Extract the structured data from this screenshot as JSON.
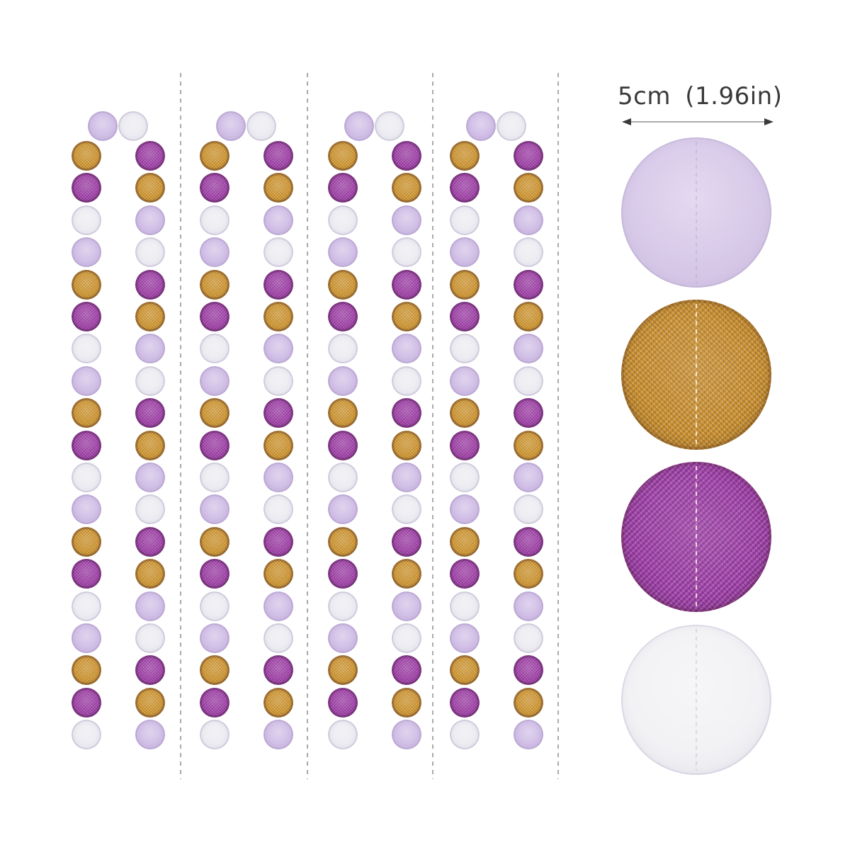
{
  "size_annotation": {
    "label": "5cm (1.96in)",
    "text_color": "#3a3a3a",
    "line_color": "#ababab",
    "arrowhead_color": "#3a3a3a"
  },
  "palette": {
    "gold": "#d2972f",
    "purple": "#a13fa9",
    "lavender": "#cfbce5",
    "white": "#ebebf1"
  },
  "garland": {
    "strand_count": 4,
    "dots_per_strand": 40,
    "top_fold_pair": [
      "lavender",
      "white"
    ],
    "left_column_sequence": [
      "gold",
      "purple",
      "white",
      "lavender",
      "gold",
      "purple",
      "white",
      "lavender",
      "gold",
      "purple",
      "white",
      "lavender",
      "gold",
      "purple",
      "white",
      "lavender",
      "gold",
      "purple",
      "white"
    ],
    "right_column_sequence": [
      "purple",
      "gold",
      "lavender",
      "white",
      "purple",
      "gold",
      "lavender",
      "white",
      "purple",
      "gold",
      "lavender",
      "white",
      "purple",
      "gold",
      "lavender",
      "white",
      "purple",
      "gold",
      "lavender"
    ]
  },
  "dividers": {
    "count": 4,
    "style": "dashed",
    "color": "#ababab"
  },
  "swatches": [
    {
      "name": "lavender-circle-swatch",
      "color_key": "lavender",
      "fill": "#d8c9e9",
      "finish": "matte"
    },
    {
      "name": "gold-glitter-circle-swatch",
      "color_key": "gold",
      "fill": "#cf9230",
      "finish": "glitter"
    },
    {
      "name": "purple-glitter-circle-swatch",
      "color_key": "purple",
      "fill": "#a23fab",
      "finish": "glitter"
    },
    {
      "name": "white-circle-swatch",
      "color_key": "white",
      "fill": "#f2f2f5",
      "finish": "matte"
    }
  ]
}
